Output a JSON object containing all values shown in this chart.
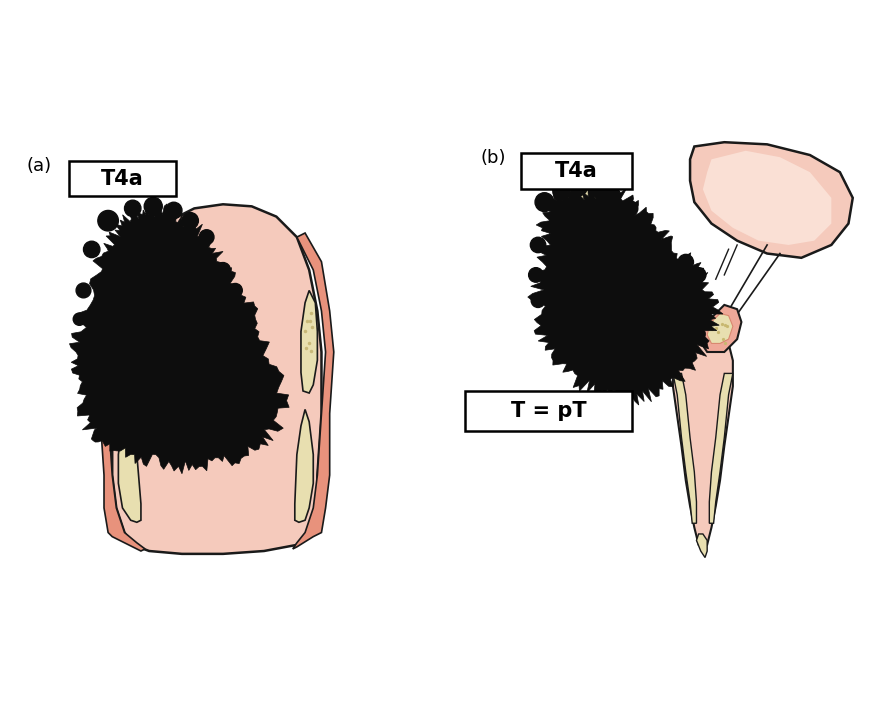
{
  "fig_width": 8.92,
  "fig_height": 7.04,
  "dpi": 100,
  "bg_color": "#ffffff",
  "label_a": "(a)",
  "label_b": "(b)",
  "box_a": "T4a",
  "box_b": "T4a",
  "box_tpt": "T = pT",
  "skin_color": "#E8927C",
  "skin_medium": "#EFA898",
  "skin_light": "#F5CABC",
  "skin_pale": "#FAE0D5",
  "cartilage_outer": "#D98870",
  "cartilage_inner": "#EDE5C0",
  "cartilage_fill": "#E8DFB0",
  "tumor_color": "#0D0D0D",
  "outline_color": "#1a1a1a",
  "line_color": "#2a2a2a"
}
